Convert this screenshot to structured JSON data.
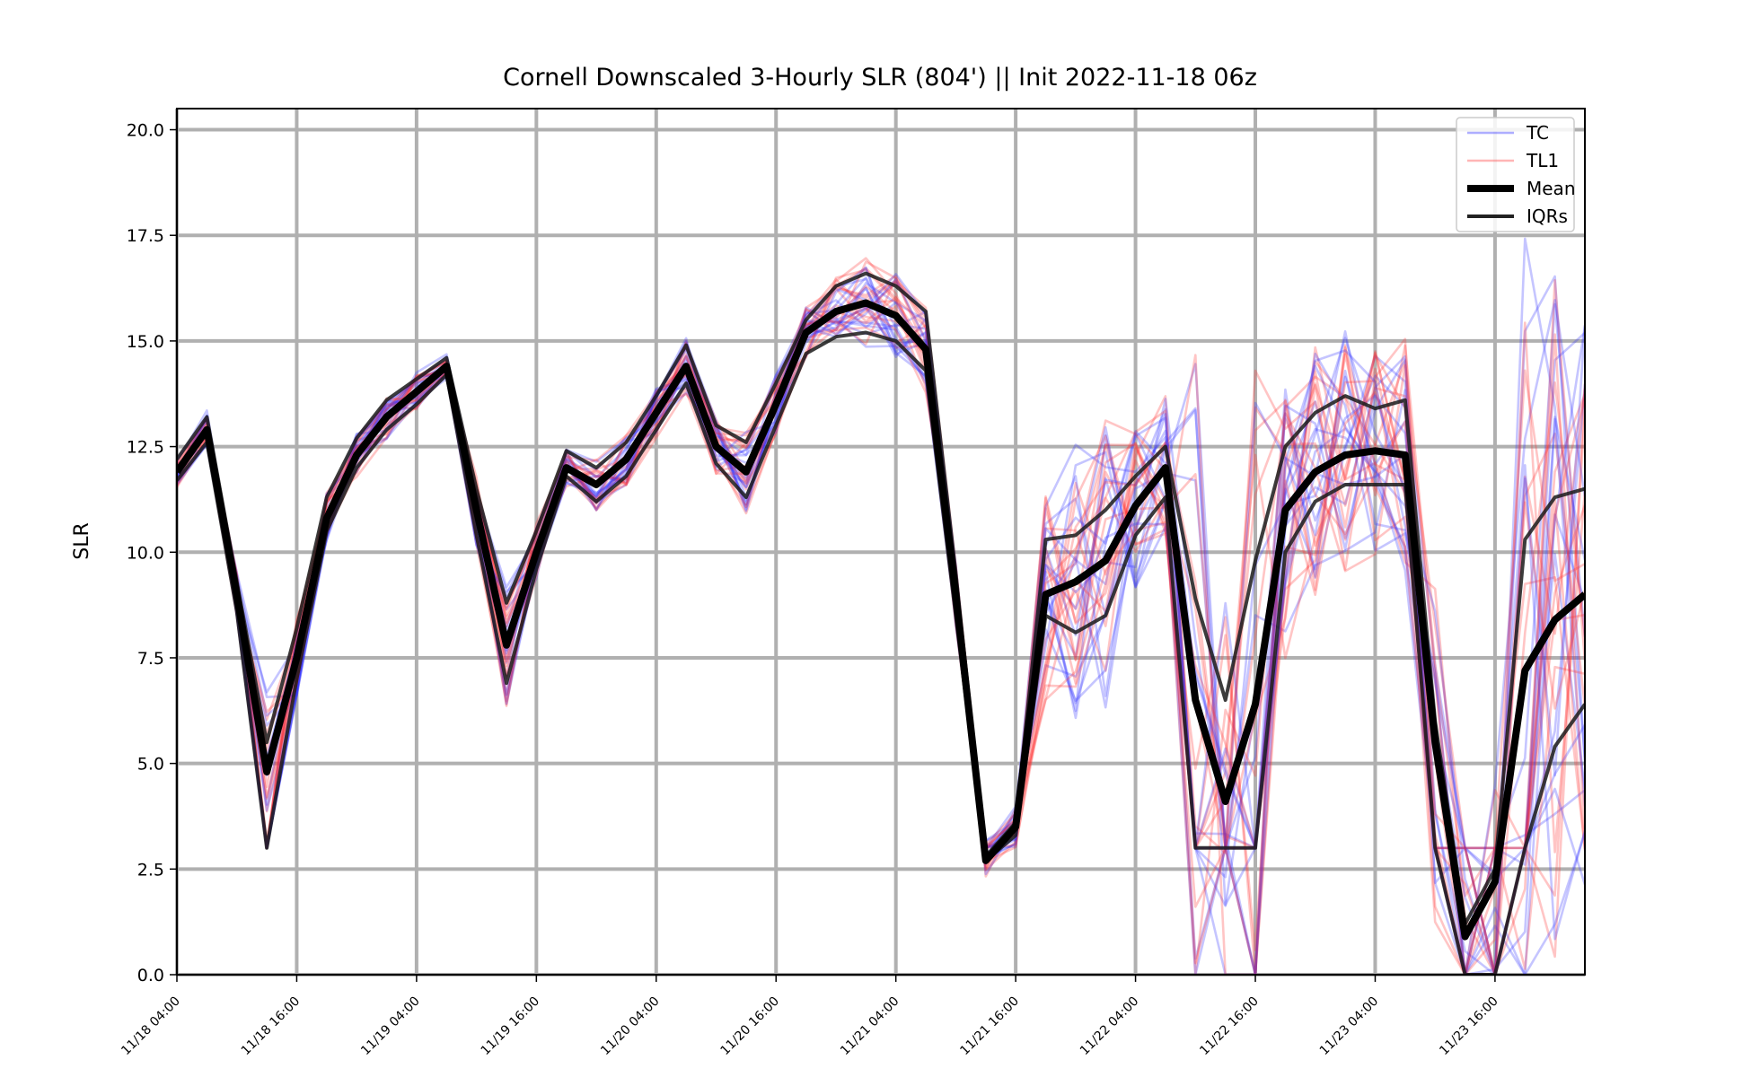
{
  "chart_data": {
    "type": "line",
    "title": "Cornell Downscaled 3-Hourly SLR (804') || Init 2022-11-18 06z",
    "xlabel": "",
    "ylabel": "SLR",
    "x_tick_labels": [
      "11/18 04:00",
      "11/18 16:00",
      "11/19 04:00",
      "11/19 16:00",
      "11/20 04:00",
      "11/20 16:00",
      "11/21 04:00",
      "11/21 16:00",
      "11/22 04:00",
      "11/22 16:00",
      "11/23 04:00",
      "11/23 16:00"
    ],
    "y_tick_labels": [
      "0.0",
      "2.5",
      "5.0",
      "7.5",
      "10.0",
      "12.5",
      "15.0",
      "17.5",
      "20.0"
    ],
    "ylim": [
      0,
      20.5
    ],
    "x_start": "11/18 04:00",
    "x_end": "11/24 02:00",
    "x_step_hours": 3,
    "grid": true,
    "legend_position": "top-right",
    "legend": [
      {
        "label": "TC",
        "color": "#4a4aff",
        "style": "thin"
      },
      {
        "label": "TL1",
        "color": "#ff5a5a",
        "style": "thin"
      },
      {
        "label": "Mean",
        "color": "#000000",
        "style": "thick"
      },
      {
        "label": "IQRs",
        "color": "#222222",
        "style": "medium"
      }
    ],
    "colors": {
      "tc": "#3030ff",
      "tl1": "#ff3030",
      "mean": "#000000",
      "iqr": "#1a1a1a",
      "grid": "#b0b0b0"
    },
    "series": [
      {
        "name": "Mean",
        "values": [
          11.9,
          12.9,
          9.0,
          4.8,
          7.5,
          10.8,
          12.3,
          13.2,
          13.8,
          14.4,
          11.0,
          7.8,
          10.0,
          12.0,
          11.6,
          12.2,
          13.3,
          14.4,
          12.5,
          11.9,
          13.5,
          15.2,
          15.7,
          15.9,
          15.6,
          14.8,
          9.0,
          2.7,
          3.5,
          9.0,
          9.3,
          9.8,
          11.1,
          12.0,
          6.5,
          4.1,
          6.4,
          11.0,
          11.9,
          12.3,
          12.4,
          12.3,
          5.5,
          0.9,
          2.2,
          7.2,
          8.4,
          9.0
        ]
      },
      {
        "name": "IQR upper",
        "values": [
          12.2,
          13.2,
          9.3,
          5.5,
          8.2,
          11.3,
          12.7,
          13.6,
          14.1,
          14.6,
          11.5,
          8.8,
          10.5,
          12.4,
          12.0,
          12.6,
          13.7,
          14.9,
          13.0,
          12.6,
          14.0,
          15.5,
          16.3,
          16.6,
          16.3,
          15.7,
          9.5,
          2.8,
          3.6,
          10.3,
          10.4,
          11.0,
          11.8,
          12.5,
          8.9,
          6.5,
          9.8,
          12.5,
          13.3,
          13.7,
          13.4,
          13.6,
          6.0,
          1.2,
          2.5,
          10.3,
          11.3,
          11.5
        ]
      },
      {
        "name": "IQR lower",
        "values": [
          11.7,
          12.6,
          8.6,
          3.0,
          7.0,
          10.5,
          12.0,
          12.9,
          13.5,
          14.2,
          10.4,
          6.9,
          9.6,
          11.8,
          11.2,
          11.8,
          12.9,
          14.0,
          12.1,
          11.3,
          13.0,
          14.7,
          15.1,
          15.2,
          15.0,
          14.3,
          8.5,
          2.7,
          3.3,
          8.5,
          8.1,
          8.5,
          10.4,
          11.3,
          3.0,
          3.0,
          3.0,
          10.0,
          11.2,
          11.6,
          11.6,
          11.6,
          3.0,
          0.0,
          0.0,
          3.0,
          5.4,
          6.4
        ]
      }
    ]
  }
}
